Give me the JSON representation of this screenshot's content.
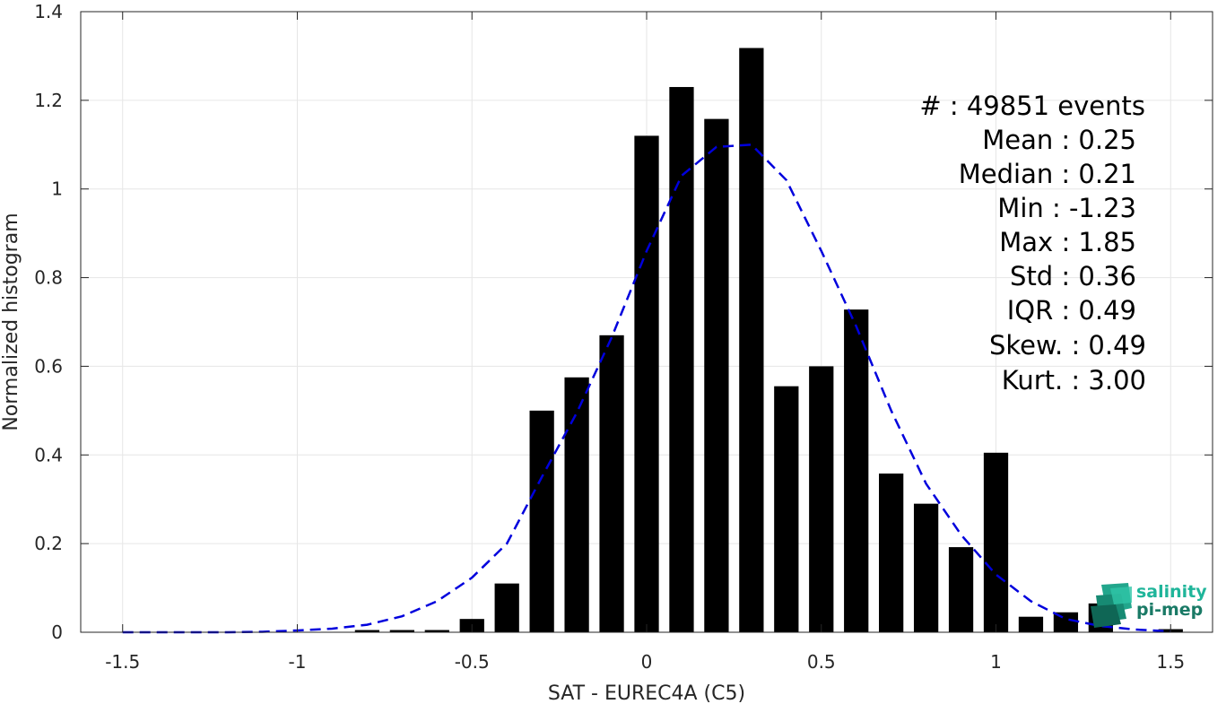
{
  "chart_data": {
    "type": "bar",
    "xlabel": "SAT - EUREC4A (C5)",
    "ylabel": "Normalized histogram",
    "xlim": [
      -1.62,
      1.62
    ],
    "ylim": [
      0,
      1.4
    ],
    "grid": true,
    "x_ticks": [
      "-1.5",
      "-1",
      "-0.5",
      "0",
      "0.5",
      "1",
      "1.5"
    ],
    "y_ticks": [
      "0",
      "0.2",
      "0.4",
      "0.6",
      "0.8",
      "1",
      "1.2",
      "1.4"
    ],
    "bar_width": 0.07,
    "bar_color": "#000000",
    "bars": [
      {
        "x": -0.8,
        "y": 0.005
      },
      {
        "x": -0.7,
        "y": 0.005
      },
      {
        "x": -0.6,
        "y": 0.005
      },
      {
        "x": -0.5,
        "y": 0.03
      },
      {
        "x": -0.4,
        "y": 0.11
      },
      {
        "x": -0.3,
        "y": 0.5
      },
      {
        "x": -0.2,
        "y": 0.575
      },
      {
        "x": -0.1,
        "y": 0.67
      },
      {
        "x": 0.0,
        "y": 1.12
      },
      {
        "x": 0.1,
        "y": 1.23
      },
      {
        "x": 0.2,
        "y": 1.158
      },
      {
        "x": 0.3,
        "y": 1.318
      },
      {
        "x": 0.4,
        "y": 0.555
      },
      {
        "x": 0.5,
        "y": 0.6
      },
      {
        "x": 0.6,
        "y": 0.728
      },
      {
        "x": 0.7,
        "y": 0.358
      },
      {
        "x": 0.8,
        "y": 0.29
      },
      {
        "x": 0.9,
        "y": 0.192
      },
      {
        "x": 1.0,
        "y": 0.405
      },
      {
        "x": 1.1,
        "y": 0.035
      },
      {
        "x": 1.2,
        "y": 0.045
      },
      {
        "x": 1.3,
        "y": 0.065
      },
      {
        "x": 1.5,
        "y": 0.007
      }
    ],
    "fit_curve": {
      "style": "dashed",
      "color": "#0000dd",
      "x": [
        -1.5,
        -1.4,
        -1.3,
        -1.2,
        -1.1,
        -1.0,
        -0.9,
        -0.8,
        -0.7,
        -0.6,
        -0.5,
        -0.4,
        -0.3,
        -0.2,
        -0.1,
        0.0,
        0.1,
        0.2,
        0.3,
        0.4,
        0.5,
        0.6,
        0.7,
        0.8,
        0.9,
        1.0,
        1.1,
        1.2,
        1.3,
        1.4,
        1.5
      ],
      "y": [
        0.0,
        0.0,
        0.0,
        0.0,
        0.001,
        0.004,
        0.008,
        0.017,
        0.036,
        0.07,
        0.123,
        0.2,
        0.35,
        0.495,
        0.665,
        0.86,
        1.03,
        1.095,
        1.1,
        1.02,
        0.86,
        0.69,
        0.5,
        0.335,
        0.22,
        0.13,
        0.07,
        0.03,
        0.014,
        0.006,
        0.002
      ]
    }
  },
  "stats": [
    {
      "label": "#  : 49851 events"
    },
    {
      "label": "Mean : 0.25"
    },
    {
      "label": "Median : 0.21"
    },
    {
      "label": "Min : -1.23"
    },
    {
      "label": "Max : 1.85"
    },
    {
      "label": "Std : 0.36"
    },
    {
      "label": "IQR : 0.49"
    },
    {
      "label": "Skew. : 0.49"
    },
    {
      "label": "Kurt. : 3.00"
    }
  ],
  "logo": {
    "line1": "salinity",
    "line2": "pi-mep",
    "color1": "#1fb59a",
    "color2": "#1a7a66"
  }
}
